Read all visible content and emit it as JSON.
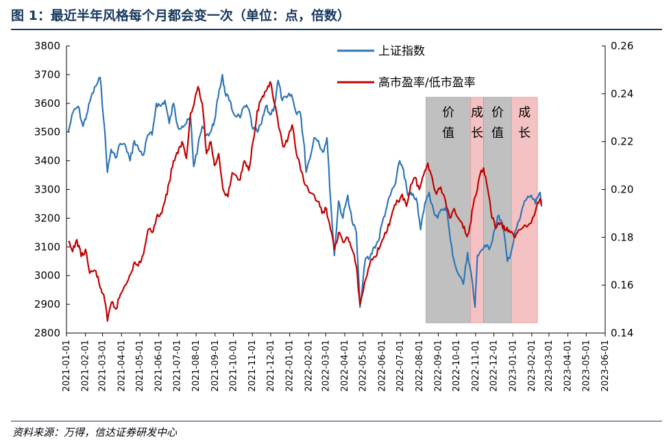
{
  "title": "图 1：最近半年风格每个月都会变一次（单位：点，倍数）",
  "source": "资料来源：万得，信达证券研发中心",
  "chart_data": {
    "type": "line",
    "x_range": [
      "2021-01-01",
      "2023-06-01"
    ],
    "x_tick_labels": [
      "2021-01-01",
      "2021-02-01",
      "2021-03-01",
      "2021-04-01",
      "2021-05-01",
      "2021-06-01",
      "2021-07-01",
      "2021-08-01",
      "2021-09-01",
      "2021-10-01",
      "2021-11-01",
      "2021-12-01",
      "2022-01-01",
      "2022-02-01",
      "2022-03-01",
      "2022-04-01",
      "2022-05-01",
      "2022-06-01",
      "2022-07-01",
      "2022-08-01",
      "2022-09-01",
      "2022-10-01",
      "2022-11-01",
      "2022-12-01",
      "2023-01-01",
      "2023-02-01",
      "2023-03-01",
      "2023-04-01",
      "2023-05-01",
      "2023-06-01"
    ],
    "y_left": {
      "range": [
        2800,
        3800
      ],
      "ticks": [
        "2800",
        "2900",
        "3000",
        "3100",
        "3200",
        "3300",
        "3400",
        "3500",
        "3600",
        "3700",
        "3800"
      ]
    },
    "y_right": {
      "range": [
        0.14,
        0.26
      ],
      "ticks": [
        "0.14",
        "0.16",
        "0.18",
        "0.20",
        "0.22",
        "0.24",
        "0.26"
      ]
    },
    "legend_position": "top-center",
    "grid": false,
    "series": [
      {
        "name": "上证指数",
        "axis": "left",
        "color": "#2e75b6",
        "points": [
          [
            "2021-01-04",
            3502
          ],
          [
            "2021-01-12",
            3570
          ],
          [
            "2021-01-20",
            3590
          ],
          [
            "2021-01-28",
            3520
          ],
          [
            "2021-02-03",
            3560
          ],
          [
            "2021-02-10",
            3620
          ],
          [
            "2021-02-18",
            3660
          ],
          [
            "2021-02-25",
            3690
          ],
          [
            "2021-03-04",
            3520
          ],
          [
            "2021-03-09",
            3360
          ],
          [
            "2021-03-15",
            3440
          ],
          [
            "2021-03-22",
            3410
          ],
          [
            "2021-03-30",
            3460
          ],
          [
            "2021-04-08",
            3450
          ],
          [
            "2021-04-15",
            3400
          ],
          [
            "2021-04-22",
            3470
          ],
          [
            "2021-04-29",
            3440
          ],
          [
            "2021-05-07",
            3420
          ],
          [
            "2021-05-14",
            3490
          ],
          [
            "2021-05-21",
            3490
          ],
          [
            "2021-05-28",
            3600
          ],
          [
            "2021-06-04",
            3590
          ],
          [
            "2021-06-11",
            3610
          ],
          [
            "2021-06-18",
            3530
          ],
          [
            "2021-06-25",
            3600
          ],
          [
            "2021-07-02",
            3520
          ],
          [
            "2021-07-09",
            3520
          ],
          [
            "2021-07-16",
            3530
          ],
          [
            "2021-07-23",
            3550
          ],
          [
            "2021-07-28",
            3380
          ],
          [
            "2021-08-04",
            3450
          ],
          [
            "2021-08-11",
            3520
          ],
          [
            "2021-08-18",
            3490
          ],
          [
            "2021-08-25",
            3500
          ],
          [
            "2021-08-31",
            3540
          ],
          [
            "2021-09-06",
            3620
          ],
          [
            "2021-09-13",
            3700
          ],
          [
            "2021-09-17",
            3640
          ],
          [
            "2021-09-24",
            3610
          ],
          [
            "2021-09-30",
            3570
          ],
          [
            "2021-10-12",
            3550
          ],
          [
            "2021-10-19",
            3590
          ],
          [
            "2021-10-26",
            3580
          ],
          [
            "2021-11-02",
            3510
          ],
          [
            "2021-11-09",
            3500
          ],
          [
            "2021-11-16",
            3530
          ],
          [
            "2021-11-23",
            3590
          ],
          [
            "2021-11-30",
            3560
          ],
          [
            "2021-12-07",
            3590
          ],
          [
            "2021-12-13",
            3680
          ],
          [
            "2021-12-20",
            3610
          ],
          [
            "2021-12-27",
            3620
          ],
          [
            "2022-01-04",
            3630
          ],
          [
            "2022-01-11",
            3570
          ],
          [
            "2022-01-18",
            3570
          ],
          [
            "2022-01-25",
            3450
          ],
          [
            "2022-01-28",
            3360
          ],
          [
            "2022-02-10",
            3480
          ],
          [
            "2022-02-17",
            3470
          ],
          [
            "2022-02-24",
            3430
          ],
          [
            "2022-03-03",
            3480
          ],
          [
            "2022-03-09",
            3260
          ],
          [
            "2022-03-15",
            3070
          ],
          [
            "2022-03-22",
            3260
          ],
          [
            "2022-03-29",
            3200
          ],
          [
            "2022-04-06",
            3280
          ],
          [
            "2022-04-13",
            3190
          ],
          [
            "2022-04-20",
            3150
          ],
          [
            "2022-04-26",
            2890
          ],
          [
            "2022-05-05",
            3060
          ],
          [
            "2022-05-12",
            3060
          ],
          [
            "2022-05-19",
            3100
          ],
          [
            "2022-05-26",
            3120
          ],
          [
            "2022-06-02",
            3190
          ],
          [
            "2022-06-09",
            3240
          ],
          [
            "2022-06-16",
            3290
          ],
          [
            "2022-06-23",
            3320
          ],
          [
            "2022-06-30",
            3400
          ],
          [
            "2022-07-06",
            3370
          ],
          [
            "2022-07-13",
            3280
          ],
          [
            "2022-07-20",
            3280
          ],
          [
            "2022-07-27",
            3270
          ],
          [
            "2022-08-03",
            3160
          ],
          [
            "2022-08-10",
            3250
          ],
          [
            "2022-08-17",
            3290
          ],
          [
            "2022-08-24",
            3230
          ],
          [
            "2022-08-31",
            3200
          ],
          [
            "2022-09-07",
            3230
          ],
          [
            "2022-09-14",
            3240
          ],
          [
            "2022-09-21",
            3120
          ],
          [
            "2022-09-28",
            3040
          ],
          [
            "2022-10-12",
            2970
          ],
          [
            "2022-10-19",
            3080
          ],
          [
            "2022-10-26",
            2990
          ],
          [
            "2022-10-31",
            2890
          ],
          [
            "2022-11-04",
            3070
          ],
          [
            "2022-11-11",
            3090
          ],
          [
            "2022-11-18",
            3100
          ],
          [
            "2022-11-25",
            3100
          ],
          [
            "2022-12-02",
            3160
          ],
          [
            "2022-12-09",
            3210
          ],
          [
            "2022-12-16",
            3170
          ],
          [
            "2022-12-23",
            3050
          ],
          [
            "2022-12-30",
            3090
          ],
          [
            "2023-01-06",
            3160
          ],
          [
            "2023-01-13",
            3200
          ],
          [
            "2023-01-20",
            3260
          ],
          [
            "2023-01-31",
            3280
          ],
          [
            "2023-02-07",
            3250
          ],
          [
            "2023-02-14",
            3290
          ],
          [
            "2023-02-17",
            3240
          ]
        ]
      },
      {
        "name": "高市盈率/低市盈率",
        "axis": "right",
        "color": "#c00000",
        "points": [
          [
            "2021-01-04",
            0.178
          ],
          [
            "2021-01-11",
            0.174
          ],
          [
            "2021-01-18",
            0.179
          ],
          [
            "2021-01-25",
            0.172
          ],
          [
            "2021-02-01",
            0.175
          ],
          [
            "2021-02-08",
            0.165
          ],
          [
            "2021-02-18",
            0.166
          ],
          [
            "2021-02-25",
            0.159
          ],
          [
            "2021-03-03",
            0.156
          ],
          [
            "2021-03-09",
            0.145
          ],
          [
            "2021-03-16",
            0.153
          ],
          [
            "2021-03-23",
            0.15
          ],
          [
            "2021-03-30",
            0.156
          ],
          [
            "2021-04-07",
            0.16
          ],
          [
            "2021-04-14",
            0.164
          ],
          [
            "2021-04-21",
            0.169
          ],
          [
            "2021-04-28",
            0.168
          ],
          [
            "2021-05-07",
            0.173
          ],
          [
            "2021-05-14",
            0.183
          ],
          [
            "2021-05-21",
            0.182
          ],
          [
            "2021-05-28",
            0.188
          ],
          [
            "2021-06-04",
            0.19
          ],
          [
            "2021-06-11",
            0.195
          ],
          [
            "2021-06-18",
            0.203
          ],
          [
            "2021-06-25",
            0.212
          ],
          [
            "2021-07-02",
            0.215
          ],
          [
            "2021-07-09",
            0.22
          ],
          [
            "2021-07-16",
            0.213
          ],
          [
            "2021-07-23",
            0.232
          ],
          [
            "2021-07-30",
            0.238
          ],
          [
            "2021-08-04",
            0.243
          ],
          [
            "2021-08-11",
            0.236
          ],
          [
            "2021-08-18",
            0.215
          ],
          [
            "2021-08-25",
            0.22
          ],
          [
            "2021-08-31",
            0.21
          ],
          [
            "2021-09-07",
            0.215
          ],
          [
            "2021-09-14",
            0.2
          ],
          [
            "2021-09-22",
            0.197
          ],
          [
            "2021-09-29",
            0.207
          ],
          [
            "2021-10-12",
            0.204
          ],
          [
            "2021-10-19",
            0.212
          ],
          [
            "2021-10-26",
            0.208
          ],
          [
            "2021-11-02",
            0.22
          ],
          [
            "2021-11-09",
            0.233
          ],
          [
            "2021-11-16",
            0.238
          ],
          [
            "2021-11-23",
            0.241
          ],
          [
            "2021-11-30",
            0.245
          ],
          [
            "2021-12-07",
            0.236
          ],
          [
            "2021-12-14",
            0.226
          ],
          [
            "2021-12-21",
            0.218
          ],
          [
            "2021-12-28",
            0.22
          ],
          [
            "2022-01-05",
            0.227
          ],
          [
            "2022-01-12",
            0.215
          ],
          [
            "2022-01-19",
            0.208
          ],
          [
            "2022-01-26",
            0.202
          ],
          [
            "2022-02-09",
            0.198
          ],
          [
            "2022-02-16",
            0.195
          ],
          [
            "2022-02-23",
            0.19
          ],
          [
            "2022-03-02",
            0.192
          ],
          [
            "2022-03-09",
            0.183
          ],
          [
            "2022-03-15",
            0.175
          ],
          [
            "2022-03-22",
            0.182
          ],
          [
            "2022-03-29",
            0.178
          ],
          [
            "2022-04-06",
            0.18
          ],
          [
            "2022-04-13",
            0.175
          ],
          [
            "2022-04-20",
            0.168
          ],
          [
            "2022-04-26",
            0.152
          ],
          [
            "2022-05-06",
            0.163
          ],
          [
            "2022-05-13",
            0.17
          ],
          [
            "2022-05-20",
            0.172
          ],
          [
            "2022-05-27",
            0.175
          ],
          [
            "2022-06-06",
            0.182
          ],
          [
            "2022-06-13",
            0.185
          ],
          [
            "2022-06-20",
            0.192
          ],
          [
            "2022-06-27",
            0.195
          ],
          [
            "2022-07-04",
            0.198
          ],
          [
            "2022-07-11",
            0.193
          ],
          [
            "2022-07-18",
            0.202
          ],
          [
            "2022-07-25",
            0.205
          ],
          [
            "2022-08-01",
            0.2
          ],
          [
            "2022-08-08",
            0.206
          ],
          [
            "2022-08-15",
            0.211
          ],
          [
            "2022-08-22",
            0.205
          ],
          [
            "2022-08-29",
            0.198
          ],
          [
            "2022-09-05",
            0.201
          ],
          [
            "2022-09-13",
            0.195
          ],
          [
            "2022-09-20",
            0.188
          ],
          [
            "2022-09-27",
            0.192
          ],
          [
            "2022-10-10",
            0.186
          ],
          [
            "2022-10-17",
            0.181
          ],
          [
            "2022-10-21",
            0.182
          ],
          [
            "2022-10-28",
            0.193
          ],
          [
            "2022-11-04",
            0.2
          ],
          [
            "2022-11-10",
            0.208
          ],
          [
            "2022-11-14",
            0.209
          ],
          [
            "2022-11-21",
            0.2
          ],
          [
            "2022-11-28",
            0.188
          ],
          [
            "2022-12-05",
            0.184
          ],
          [
            "2022-12-12",
            0.186
          ],
          [
            "2022-12-19",
            0.183
          ],
          [
            "2022-12-26",
            0.183
          ],
          [
            "2023-01-03",
            0.18
          ],
          [
            "2023-01-10",
            0.183
          ],
          [
            "2023-01-17",
            0.184
          ],
          [
            "2023-01-31",
            0.186
          ],
          [
            "2023-02-07",
            0.191
          ],
          [
            "2023-02-14",
            0.196
          ],
          [
            "2023-02-17",
            0.194
          ]
        ]
      }
    ],
    "bands": [
      {
        "label_lines": [
          "价",
          "值"
        ],
        "start": "2022-08-12",
        "end": "2022-10-24",
        "color": "#c0c0c0"
      },
      {
        "label_lines": [
          "成",
          "长"
        ],
        "start": "2022-10-24",
        "end": "2022-11-14",
        "color": "#f4c2c2"
      },
      {
        "label_lines": [
          "价",
          "值"
        ],
        "start": "2022-11-14",
        "end": "2022-12-30",
        "color": "#c0c0c0"
      },
      {
        "label_lines": [
          "成",
          "长"
        ],
        "start": "2022-12-30",
        "end": "2023-02-10",
        "color": "#f4c2c2"
      }
    ]
  }
}
